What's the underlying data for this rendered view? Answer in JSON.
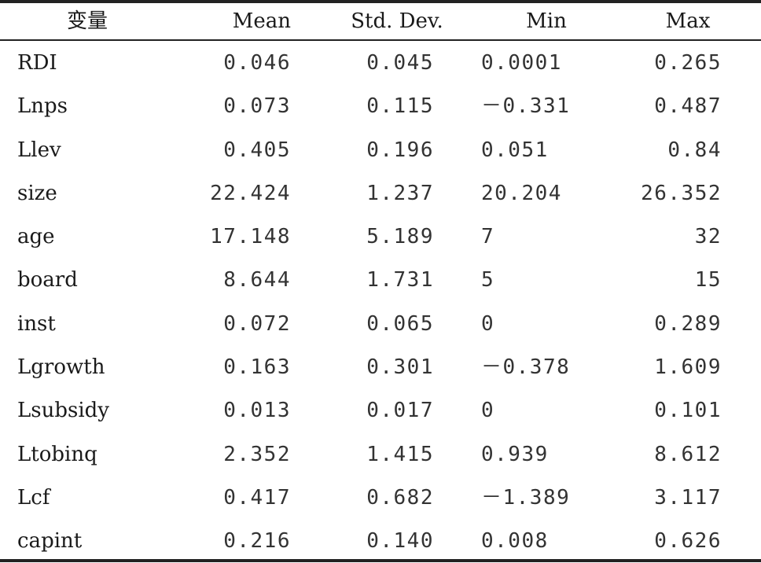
{
  "table": {
    "headers": {
      "variable": "变量",
      "mean": "Mean",
      "sd": "Std. Dev.",
      "min": "Min",
      "max": "Max"
    },
    "rows": [
      {
        "variable": "RDI",
        "mean": "0.046",
        "sd": "0.045",
        "min": " 0.0001",
        "max": "0.265"
      },
      {
        "variable": "Lnps",
        "mean": "0.073",
        "sd": "0.115",
        "min": "－0.331",
        "max": "0.487"
      },
      {
        "variable": "Llev",
        "mean": "0.405",
        "sd": "0.196",
        "min": " 0.051",
        "max": "0.84 "
      },
      {
        "variable": "size",
        "mean": "22.424",
        "sd": "1.237",
        "min": "20.204",
        "max": "26.352"
      },
      {
        "variable": "age",
        "mean": "17.148",
        "sd": "5.189",
        "min": " 7",
        "max": "32    "
      },
      {
        "variable": "board",
        "mean": "8.644",
        "sd": "1.731",
        "min": " 5",
        "max": "15    "
      },
      {
        "variable": "inst",
        "mean": "0.072",
        "sd": "0.065",
        "min": " 0",
        "max": "0.289"
      },
      {
        "variable": "Lgrowth",
        "mean": "0.163",
        "sd": "0.301",
        "min": "－0.378",
        "max": "1.609"
      },
      {
        "variable": "Lsubsidy",
        "mean": "0.013",
        "sd": "0.017",
        "min": " 0",
        "max": "0.101"
      },
      {
        "variable": "Ltobinq",
        "mean": "2.352",
        "sd": "1.415",
        "min": " 0.939",
        "max": "8.612"
      },
      {
        "variable": "Lcf",
        "mean": "0.417",
        "sd": "0.682",
        "min": "－1.389",
        "max": "3.117"
      },
      {
        "variable": "capint",
        "mean": "0.216",
        "sd": "0.140",
        "min": " 0.008",
        "max": "0.626"
      }
    ]
  }
}
